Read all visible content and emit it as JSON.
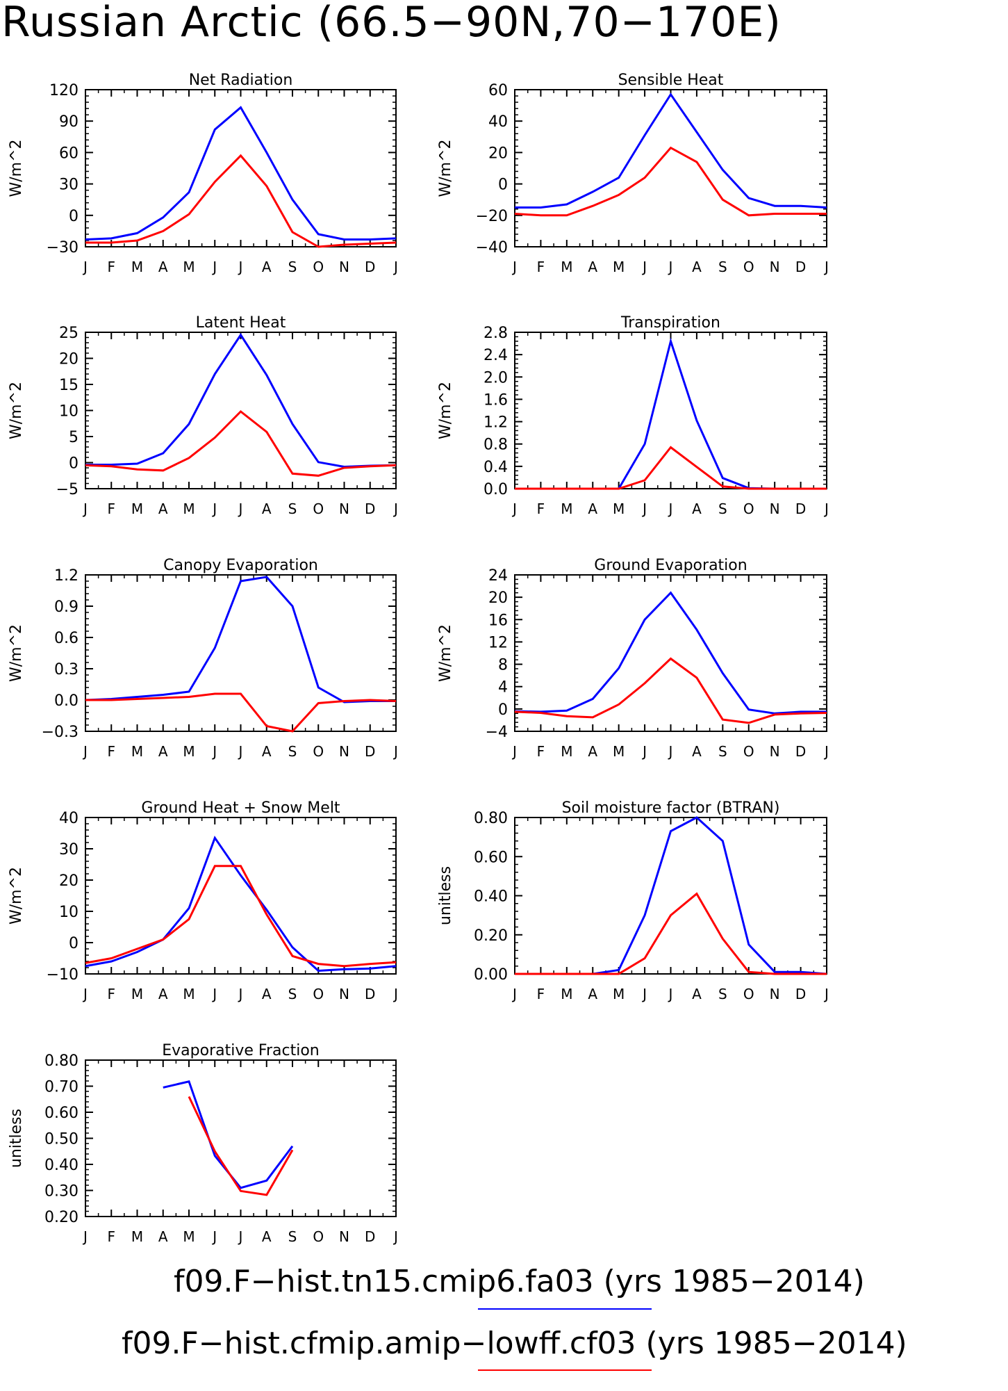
{
  "title": "Russian Arctic (66.5−90N,70−170E)",
  "colors": {
    "series_1": "#0000ff",
    "series_2": "#ff0000",
    "axes": "#000000"
  },
  "legend": {
    "entries": [
      {
        "text": "f09.F−hist.tn15.cmip6.fa03 (yrs 1985−2014)",
        "color": "#0000ff"
      },
      {
        "text": "f09.F−hist.cfmip.amip−lowff.cf03 (yrs 1985−2014)",
        "color": "#ff0000"
      }
    ]
  },
  "chart_data": [
    {
      "type": "line",
      "title": "Net Radiation",
      "ylabel": "W/m^2",
      "categories": [
        "J",
        "F",
        "M",
        "A",
        "M",
        "J",
        "J",
        "A",
        "S",
        "O",
        "N",
        "D",
        "J"
      ],
      "ylim": [
        -30,
        120
      ],
      "yticks": [
        -30,
        0,
        30,
        60,
        90,
        120
      ],
      "ytick_labels": [
        "−30",
        "0",
        "30",
        "60",
        "90",
        "120"
      ],
      "series": [
        {
          "values": [
            -23,
            -22,
            -17,
            -2,
            22,
            82,
            103,
            60,
            15,
            -18,
            -23,
            -23,
            -22
          ]
        },
        {
          "values": [
            -26,
            -26,
            -24,
            -15,
            1,
            32,
            57,
            28,
            -16,
            -30,
            -28,
            -27,
            -26
          ]
        }
      ]
    },
    {
      "type": "line",
      "title": "Sensible Heat",
      "ylabel": "W/m^2",
      "categories": [
        "J",
        "F",
        "M",
        "A",
        "M",
        "J",
        "J",
        "A",
        "S",
        "O",
        "N",
        "D",
        "J"
      ],
      "ylim": [
        -40,
        60
      ],
      "yticks": [
        -40,
        -20,
        0,
        20,
        40,
        60
      ],
      "ytick_labels": [
        "−40",
        "−20",
        "0",
        "20",
        "40",
        "60"
      ],
      "series": [
        {
          "values": [
            -15,
            -15,
            -13,
            -5,
            4,
            31,
            57,
            33,
            9,
            -9,
            -14,
            -14,
            -15
          ]
        },
        {
          "values": [
            -19,
            -20,
            -20,
            -14,
            -7,
            4,
            23,
            14,
            -10,
            -20,
            -19,
            -19,
            -19
          ]
        }
      ]
    },
    {
      "type": "line",
      "title": "Latent Heat",
      "ylabel": "W/m^2",
      "categories": [
        "J",
        "F",
        "M",
        "A",
        "M",
        "J",
        "J",
        "A",
        "S",
        "O",
        "N",
        "D",
        "J"
      ],
      "ylim": [
        -5,
        25
      ],
      "yticks": [
        -5,
        0,
        5,
        10,
        15,
        20,
        25
      ],
      "ytick_labels": [
        "−5",
        "0",
        "5",
        "10",
        "15",
        "20",
        "25"
      ],
      "series": [
        {
          "values": [
            -0.4,
            -0.4,
            -0.2,
            1.8,
            7.4,
            17,
            24.5,
            16.8,
            7.4,
            0.1,
            -0.8,
            -0.6,
            -0.5
          ]
        },
        {
          "values": [
            -0.5,
            -0.7,
            -1.3,
            -1.5,
            0.9,
            4.8,
            9.8,
            5.9,
            -2.1,
            -2.5,
            -1.0,
            -0.7,
            -0.5
          ]
        }
      ]
    },
    {
      "type": "line",
      "title": "Transpiration",
      "ylabel": "W/m^2",
      "categories": [
        "J",
        "F",
        "M",
        "A",
        "M",
        "J",
        "J",
        "A",
        "S",
        "O",
        "N",
        "D",
        "J"
      ],
      "ylim": [
        0,
        2.8
      ],
      "yticks": [
        0,
        0.4,
        0.8,
        1.2,
        1.6,
        2.0,
        2.4,
        2.8
      ],
      "ytick_labels": [
        "0.0",
        "0.4",
        "0.8",
        "1.2",
        "1.6",
        "2.0",
        "2.4",
        "2.8"
      ],
      "series": [
        {
          "values": [
            0,
            0,
            0,
            0,
            0,
            0.8,
            2.64,
            1.22,
            0.19,
            0.01,
            0,
            0,
            0
          ]
        },
        {
          "values": [
            0,
            0,
            0,
            0,
            0,
            0.15,
            0.74,
            0.39,
            0.04,
            0,
            0,
            0,
            0
          ]
        }
      ]
    },
    {
      "type": "line",
      "title": "Canopy Evaporation",
      "ylabel": "W/m^2",
      "categories": [
        "J",
        "F",
        "M",
        "A",
        "M",
        "J",
        "J",
        "A",
        "S",
        "O",
        "N",
        "D",
        "J"
      ],
      "ylim": [
        -0.3,
        1.2
      ],
      "yticks": [
        -0.3,
        0,
        0.3,
        0.6,
        0.9,
        1.2
      ],
      "ytick_labels": [
        "−0.3",
        "0.0",
        "0.3",
        "0.6",
        "0.9",
        "1.2"
      ],
      "series": [
        {
          "values": [
            0,
            0.01,
            0.03,
            0.05,
            0.08,
            0.5,
            1.14,
            1.18,
            0.9,
            0.12,
            -0.02,
            -0.01,
            -0.01
          ]
        },
        {
          "values": [
            0,
            0,
            0.01,
            0.02,
            0.03,
            0.06,
            0.06,
            -0.25,
            -0.3,
            -0.03,
            -0.01,
            0,
            -0.01
          ]
        }
      ]
    },
    {
      "type": "line",
      "title": "Ground Evaporation",
      "ylabel": "W/m^2",
      "categories": [
        "J",
        "F",
        "M",
        "A",
        "M",
        "J",
        "J",
        "A",
        "S",
        "O",
        "N",
        "D",
        "J"
      ],
      "ylim": [
        -4,
        24
      ],
      "yticks": [
        -4,
        0,
        4,
        8,
        12,
        16,
        20,
        24
      ],
      "ytick_labels": [
        "−4",
        "0",
        "4",
        "8",
        "12",
        "16",
        "20",
        "24"
      ],
      "series": [
        {
          "values": [
            -0.4,
            -0.5,
            -0.3,
            1.8,
            7.3,
            16,
            20.8,
            14.2,
            6.4,
            -0.1,
            -0.8,
            -0.5,
            -0.5
          ]
        },
        {
          "values": [
            -0.5,
            -0.7,
            -1.3,
            -1.5,
            0.8,
            4.6,
            9,
            5.6,
            -1.9,
            -2.5,
            -1.0,
            -0.8,
            -0.7
          ]
        }
      ]
    },
    {
      "type": "line",
      "title": "Ground Heat + Snow Melt",
      "ylabel": "W/m^2",
      "categories": [
        "J",
        "F",
        "M",
        "A",
        "M",
        "J",
        "J",
        "A",
        "S",
        "O",
        "N",
        "D",
        "J"
      ],
      "ylim": [
        -10,
        40
      ],
      "yticks": [
        -10,
        0,
        10,
        20,
        30,
        40
      ],
      "ytick_labels": [
        "−10",
        "0",
        "10",
        "20",
        "30",
        "40"
      ],
      "series": [
        {
          "values": [
            -7.5,
            -6,
            -3,
            1,
            11,
            33.5,
            21.5,
            10.5,
            -1.5,
            -9,
            -8.5,
            -8.3,
            -7.5
          ]
        },
        {
          "values": [
            -6.5,
            -5,
            -2,
            1,
            7.5,
            24.5,
            24.5,
            9,
            -4.3,
            -6.8,
            -7.5,
            -6.8,
            -6.3
          ]
        }
      ]
    },
    {
      "type": "line",
      "title": "Soil moisture factor (BTRAN)",
      "ylabel": "unitless",
      "categories": [
        "J",
        "F",
        "M",
        "A",
        "M",
        "J",
        "J",
        "A",
        "S",
        "O",
        "N",
        "D",
        "J"
      ],
      "ylim": [
        0,
        0.8
      ],
      "yticks": [
        0,
        0.2,
        0.4,
        0.6,
        0.8
      ],
      "ytick_labels": [
        "0.00",
        "0.20",
        "0.40",
        "0.60",
        "0.80"
      ],
      "series": [
        {
          "values": [
            0,
            0,
            0,
            0,
            0.02,
            0.3,
            0.73,
            0.8,
            0.68,
            0.15,
            0.01,
            0.01,
            0
          ]
        },
        {
          "values": [
            0,
            0,
            0,
            0,
            0,
            0.08,
            0.3,
            0.41,
            0.18,
            0.01,
            0,
            0,
            0
          ]
        }
      ]
    },
    {
      "type": "line",
      "title": "Evaporative Fraction",
      "ylabel": "unitless",
      "categories": [
        "J",
        "F",
        "M",
        "A",
        "M",
        "J",
        "J",
        "A",
        "S",
        "O",
        "N",
        "D",
        "J"
      ],
      "ylim": [
        0.2,
        0.8
      ],
      "yticks": [
        0.2,
        0.3,
        0.4,
        0.5,
        0.6,
        0.7,
        0.8
      ],
      "ytick_labels": [
        "0.20",
        "0.30",
        "0.40",
        "0.50",
        "0.60",
        "0.70",
        "0.80"
      ],
      "series": [
        {
          "values": [
            null,
            null,
            null,
            0.695,
            0.718,
            0.433,
            0.31,
            0.338,
            0.47,
            null,
            null,
            null,
            null
          ]
        },
        {
          "values": [
            null,
            null,
            null,
            null,
            0.66,
            0.45,
            0.298,
            0.283,
            0.455,
            null,
            null,
            null,
            null
          ]
        }
      ]
    }
  ]
}
